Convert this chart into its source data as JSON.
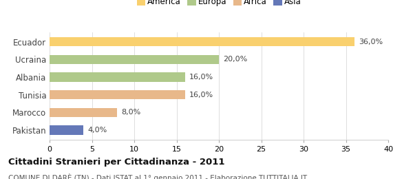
{
  "categories": [
    "Ecuador",
    "Ucraina",
    "Albania",
    "Tunisia",
    "Marocco",
    "Pakistan"
  ],
  "values": [
    36.0,
    20.0,
    16.0,
    16.0,
    8.0,
    4.0
  ],
  "colors": [
    "#F9D06E",
    "#AFC98A",
    "#AFC98A",
    "#E8B88A",
    "#E8B88A",
    "#6478B8"
  ],
  "labels": [
    "36,0%",
    "20,0%",
    "16,0%",
    "16,0%",
    "8,0%",
    "4,0%"
  ],
  "legend": [
    {
      "label": "America",
      "color": "#F9D06E"
    },
    {
      "label": "Europa",
      "color": "#AFC98A"
    },
    {
      "label": "Africa",
      "color": "#E8B88A"
    },
    {
      "label": "Asia",
      "color": "#6478B8"
    }
  ],
  "xlim": [
    0,
    40
  ],
  "xticks": [
    0,
    5,
    10,
    15,
    20,
    25,
    30,
    35,
    40
  ],
  "title": "Cittadini Stranieri per Cittadinanza - 2011",
  "subtitle": "COMUNE DI DARÈ (TN) - Dati ISTAT al 1° gennaio 2011 - Elaborazione TUTTITALIA.IT",
  "title_fontsize": 9.5,
  "subtitle_fontsize": 7.5,
  "background_color": "#ffffff",
  "bar_height": 0.52,
  "label_fontsize": 8,
  "ytick_fontsize": 8.5,
  "xtick_fontsize": 8
}
